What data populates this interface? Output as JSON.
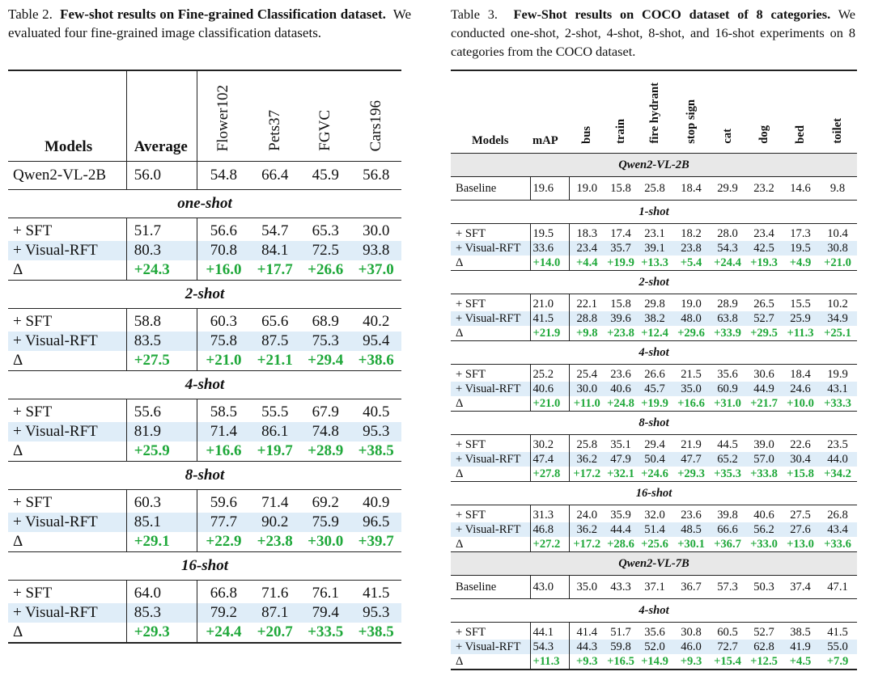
{
  "table2": {
    "label": "Table 2.",
    "title": "Few-shot results on Fine-grained Classification dataset.",
    "desc": "We evaluated four fine-grained image classification datasets.",
    "headers": [
      "Models",
      "Average",
      "Flower102",
      "Pets37",
      "FGVC",
      "Cars196"
    ],
    "baseline": {
      "model": "Qwen2-VL-2B",
      "values": [
        "56.0",
        "54.8",
        "66.4",
        "45.9",
        "56.8"
      ]
    },
    "sections": [
      {
        "title": "one-shot",
        "rows": [
          {
            "model": "+ SFT",
            "values": [
              "51.7",
              "56.6",
              "54.7",
              "65.3",
              "30.0"
            ]
          },
          {
            "model": "+ Visual-RFT",
            "values": [
              "80.3",
              "70.8",
              "84.1",
              "72.5",
              "93.8"
            ]
          },
          {
            "model": "Δ",
            "values": [
              "+24.3",
              "+16.0",
              "+17.7",
              "+26.6",
              "+37.0"
            ]
          }
        ]
      },
      {
        "title": "2-shot",
        "rows": [
          {
            "model": "+ SFT",
            "values": [
              "58.8",
              "60.3",
              "65.6",
              "68.9",
              "40.2"
            ]
          },
          {
            "model": "+ Visual-RFT",
            "values": [
              "83.5",
              "75.8",
              "87.5",
              "75.3",
              "95.4"
            ]
          },
          {
            "model": "Δ",
            "values": [
              "+27.5",
              "+21.0",
              "+21.1",
              "+29.4",
              "+38.6"
            ]
          }
        ]
      },
      {
        "title": "4-shot",
        "rows": [
          {
            "model": "+ SFT",
            "values": [
              "55.6",
              "58.5",
              "55.5",
              "67.9",
              "40.5"
            ]
          },
          {
            "model": "+ Visual-RFT",
            "values": [
              "81.9",
              "71.4",
              "86.1",
              "74.8",
              "95.3"
            ]
          },
          {
            "model": "Δ",
            "values": [
              "+25.9",
              "+16.6",
              "+19.7",
              "+28.9",
              "+38.5"
            ]
          }
        ]
      },
      {
        "title": "8-shot",
        "rows": [
          {
            "model": "+ SFT",
            "values": [
              "60.3",
              "59.6",
              "71.4",
              "69.2",
              "40.9"
            ]
          },
          {
            "model": "+ Visual-RFT",
            "values": [
              "85.1",
              "77.7",
              "90.2",
              "75.9",
              "96.5"
            ]
          },
          {
            "model": "Δ",
            "values": [
              "+29.1",
              "+22.9",
              "+23.8",
              "+30.0",
              "+39.7"
            ]
          }
        ]
      },
      {
        "title": "16-shot",
        "rows": [
          {
            "model": "+ SFT",
            "values": [
              "64.0",
              "66.8",
              "71.6",
              "76.1",
              "41.5"
            ]
          },
          {
            "model": "+ Visual-RFT",
            "values": [
              "85.3",
              "79.2",
              "87.1",
              "79.4",
              "95.3"
            ]
          },
          {
            "model": "Δ",
            "values": [
              "+29.3",
              "+24.4",
              "+20.7",
              "+33.5",
              "+38.5"
            ]
          }
        ]
      }
    ]
  },
  "table3": {
    "label": "Table 3.",
    "title": "Few-Shot results on COCO dataset of 8 categories.",
    "desc": "We conducted one-shot, 2-shot, 4-shot, 8-shot, and 16-shot experiments on 8 categories from the COCO dataset.",
    "headers": [
      "Models",
      "mAP",
      "bus",
      "train",
      "fire hydrant",
      "stop sign",
      "cat",
      "dog",
      "bed",
      "toilet"
    ],
    "groups": [
      {
        "title": "Qwen2-VL-2B",
        "baseline": {
          "model": "Baseline",
          "values": [
            "19.6",
            "19.0",
            "15.8",
            "25.8",
            "18.4",
            "29.9",
            "23.2",
            "14.6",
            "9.8"
          ]
        },
        "sections": [
          {
            "title": "1-shot",
            "rows": [
              {
                "model": "+ SFT",
                "values": [
                  "19.5",
                  "18.3",
                  "17.4",
                  "23.1",
                  "18.2",
                  "28.0",
                  "23.4",
                  "17.3",
                  "10.4"
                ]
              },
              {
                "model": "+ Visual-RFT",
                "values": [
                  "33.6",
                  "23.4",
                  "35.7",
                  "39.1",
                  "23.8",
                  "54.3",
                  "42.5",
                  "19.5",
                  "30.8"
                ]
              },
              {
                "model": "Δ",
                "values": [
                  "+14.0",
                  "+4.4",
                  "+19.9",
                  "+13.3",
                  "+5.4",
                  "+24.4",
                  "+19.3",
                  "+4.9",
                  "+21.0"
                ]
              }
            ]
          },
          {
            "title": "2-shot",
            "rows": [
              {
                "model": "+ SFT",
                "values": [
                  "21.0",
                  "22.1",
                  "15.8",
                  "29.8",
                  "19.0",
                  "28.9",
                  "26.5",
                  "15.5",
                  "10.2"
                ]
              },
              {
                "model": "+ Visual-RFT",
                "values": [
                  "41.5",
                  "28.8",
                  "39.6",
                  "38.2",
                  "48.0",
                  "63.8",
                  "52.7",
                  "25.9",
                  "34.9"
                ]
              },
              {
                "model": "Δ",
                "values": [
                  "+21.9",
                  "+9.8",
                  "+23.8",
                  "+12.4",
                  "+29.6",
                  "+33.9",
                  "+29.5",
                  "+11.3",
                  "+25.1"
                ]
              }
            ]
          },
          {
            "title": "4-shot",
            "rows": [
              {
                "model": "+ SFT",
                "values": [
                  "25.2",
                  "25.4",
                  "23.6",
                  "26.6",
                  "21.5",
                  "35.6",
                  "30.6",
                  "18.4",
                  "19.9"
                ]
              },
              {
                "model": "+ Visual-RFT",
                "values": [
                  "40.6",
                  "30.0",
                  "40.6",
                  "45.7",
                  "35.0",
                  "60.9",
                  "44.9",
                  "24.6",
                  "43.1"
                ]
              },
              {
                "model": "Δ",
                "values": [
                  "+21.0",
                  "+11.0",
                  "+24.8",
                  "+19.9",
                  "+16.6",
                  "+31.0",
                  "+21.7",
                  "+10.0",
                  "+33.3"
                ]
              }
            ]
          },
          {
            "title": "8-shot",
            "rows": [
              {
                "model": "+ SFT",
                "values": [
                  "30.2",
                  "25.8",
                  "35.1",
                  "29.4",
                  "21.9",
                  "44.5",
                  "39.0",
                  "22.6",
                  "23.5"
                ]
              },
              {
                "model": "+ Visual-RFT",
                "values": [
                  "47.4",
                  "36.2",
                  "47.9",
                  "50.4",
                  "47.7",
                  "65.2",
                  "57.0",
                  "30.4",
                  "44.0"
                ]
              },
              {
                "model": "Δ",
                "values": [
                  "+27.8",
                  "+17.2",
                  "+32.1",
                  "+24.6",
                  "+29.3",
                  "+35.3",
                  "+33.8",
                  "+15.8",
                  "+34.2"
                ]
              }
            ]
          },
          {
            "title": "16-shot",
            "rows": [
              {
                "model": "+ SFT",
                "values": [
                  "31.3",
                  "24.0",
                  "35.9",
                  "32.0",
                  "23.6",
                  "39.8",
                  "40.6",
                  "27.5",
                  "26.8"
                ]
              },
              {
                "model": "+ Visual-RFT",
                "values": [
                  "46.8",
                  "36.2",
                  "44.4",
                  "51.4",
                  "48.5",
                  "66.6",
                  "56.2",
                  "27.6",
                  "43.4"
                ]
              },
              {
                "model": "Δ",
                "values": [
                  "+27.2",
                  "+17.2",
                  "+28.6",
                  "+25.6",
                  "+30.1",
                  "+36.7",
                  "+33.0",
                  "+13.0",
                  "+33.6"
                ]
              }
            ]
          }
        ]
      },
      {
        "title": "Qwen2-VL-7B",
        "baseline": {
          "model": "Baseline",
          "values": [
            "43.0",
            "35.0",
            "43.3",
            "37.1",
            "36.7",
            "57.3",
            "50.3",
            "37.4",
            "47.1"
          ]
        },
        "sections": [
          {
            "title": "4-shot",
            "rows": [
              {
                "model": "+ SFT",
                "values": [
                  "44.1",
                  "41.4",
                  "51.7",
                  "35.6",
                  "30.8",
                  "60.5",
                  "52.7",
                  "38.5",
                  "41.5"
                ]
              },
              {
                "model": "+ Visual-RFT",
                "values": [
                  "54.3",
                  "44.3",
                  "59.8",
                  "52.0",
                  "46.0",
                  "72.7",
                  "62.8",
                  "41.9",
                  "55.0"
                ]
              },
              {
                "model": "Δ",
                "values": [
                  "+11.3",
                  "+9.3",
                  "+16.5",
                  "+14.9",
                  "+9.3",
                  "+15.4",
                  "+12.5",
                  "+4.5",
                  "+7.9"
                ]
              }
            ]
          }
        ]
      }
    ]
  }
}
